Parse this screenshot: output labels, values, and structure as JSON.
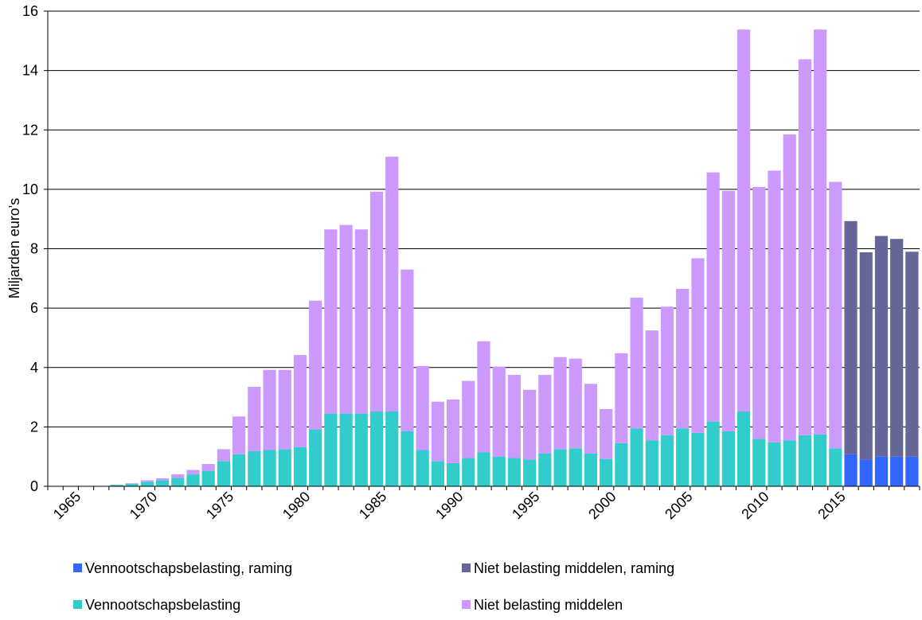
{
  "chart_data": {
    "type": "stacked_bar",
    "ylabel": "Miljarden euro's",
    "categories": [
      null,
      null,
      "1965",
      null,
      null,
      null,
      null,
      "1970",
      null,
      null,
      null,
      null,
      "1975",
      null,
      null,
      null,
      null,
      "1980",
      null,
      null,
      null,
      null,
      "1985",
      null,
      null,
      null,
      null,
      "1990",
      null,
      null,
      null,
      null,
      "1995",
      null,
      null,
      null,
      null,
      "2000",
      null,
      null,
      null,
      null,
      "2005",
      null,
      null,
      null,
      null,
      "2010",
      null,
      null,
      null,
      null,
      "2015",
      null,
      null,
      null,
      null
    ],
    "series": [
      {
        "name": "Vennootschapsbelasting, raming",
        "color": "#3366ff",
        "values": [
          null,
          null,
          null,
          null,
          null,
          null,
          null,
          null,
          null,
          null,
          null,
          null,
          null,
          null,
          null,
          null,
          null,
          null,
          null,
          null,
          null,
          null,
          null,
          null,
          null,
          null,
          null,
          null,
          null,
          null,
          null,
          null,
          null,
          null,
          null,
          null,
          null,
          null,
          null,
          null,
          null,
          null,
          null,
          null,
          null,
          null,
          null,
          null,
          null,
          null,
          null,
          null,
          1.08,
          0.9,
          1.0,
          1.0,
          1.0
        ]
      },
      {
        "name": "Niet belasting middelen, raming",
        "color": "#666699",
        "values": [
          null,
          null,
          null,
          null,
          null,
          null,
          null,
          null,
          null,
          null,
          null,
          null,
          null,
          null,
          null,
          null,
          null,
          null,
          null,
          null,
          null,
          null,
          null,
          null,
          null,
          null,
          null,
          null,
          null,
          null,
          null,
          null,
          null,
          null,
          null,
          null,
          null,
          null,
          null,
          null,
          null,
          null,
          null,
          null,
          null,
          null,
          null,
          null,
          null,
          null,
          null,
          null,
          7.85,
          6.98,
          7.43,
          7.33,
          6.9
        ]
      },
      {
        "name": "Vennootschapsbelasting",
        "color": "#33cccc",
        "values": [
          null,
          null,
          null,
          null,
          0.05,
          0.08,
          0.15,
          0.2,
          0.28,
          0.4,
          0.52,
          0.85,
          1.08,
          1.18,
          1.22,
          1.25,
          1.32,
          1.92,
          2.45,
          2.45,
          2.45,
          2.52,
          2.52,
          1.85,
          1.22,
          0.85,
          0.78,
          0.95,
          1.15,
          1.0,
          0.95,
          0.9,
          1.1,
          1.25,
          1.28,
          1.1,
          0.92,
          1.45,
          1.95,
          1.55,
          1.72,
          1.95,
          1.8,
          2.18,
          1.85,
          2.52,
          1.6,
          1.48,
          1.55,
          1.72,
          1.75,
          1.28,
          null,
          null,
          null,
          null,
          null
        ]
      },
      {
        "name": "Niet belasting middelen",
        "color": "#cc99ff",
        "values": [
          null,
          null,
          null,
          null,
          0,
          0.02,
          0.05,
          0.07,
          0.12,
          0.15,
          0.23,
          0.4,
          1.27,
          2.17,
          2.7,
          2.67,
          3.1,
          4.33,
          6.2,
          6.35,
          6.2,
          7.4,
          8.58,
          5.45,
          2.83,
          2.0,
          2.14,
          2.6,
          3.73,
          3.03,
          2.8,
          2.35,
          2.65,
          3.1,
          3.02,
          2.35,
          1.68,
          3.03,
          4.4,
          3.7,
          4.33,
          4.7,
          5.88,
          8.39,
          8.1,
          12.86,
          8.48,
          9.15,
          10.3,
          12.66,
          13.63,
          8.97,
          null,
          null,
          null,
          null,
          null
        ]
      }
    ],
    "ylim": [
      0,
      16
    ],
    "yticks": [
      0,
      2,
      4,
      6,
      8,
      10,
      12,
      14,
      16
    ],
    "grid": true
  }
}
